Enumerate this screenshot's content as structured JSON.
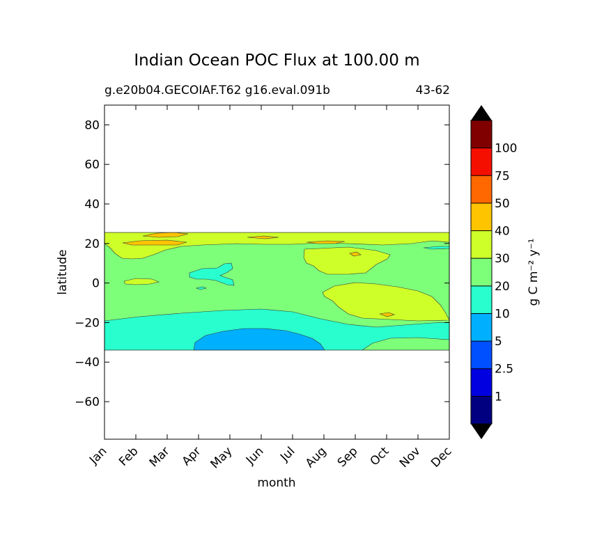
{
  "chart_data": {
    "type": "contour",
    "title": "Indian Ocean POC Flux at 100.00 m",
    "subtitle_left": "g.e20b04.GECOIAF.T62 g16.eval.091b",
    "subtitle_right": "43-62",
    "xlabel": "month",
    "ylabel": "latitude",
    "x_categories": [
      "Jan",
      "Feb",
      "Mar",
      "Apr",
      "May",
      "Jun",
      "Jul",
      "Aug",
      "Sep",
      "Oct",
      "Nov",
      "Dec"
    ],
    "ylim": [
      -79,
      90
    ],
    "y_ticks": [
      80,
      60,
      40,
      20,
      0,
      -20,
      -40,
      -60
    ],
    "y_tick_labels": [
      "80",
      "60",
      "40",
      "20",
      "0",
      "−20",
      "−40",
      "−60"
    ],
    "data_lat_range": [
      -34,
      25
    ],
    "colorbar": {
      "label": "g C m⁻² y⁻¹",
      "levels": [
        0,
        1,
        2.5,
        5,
        10,
        20,
        30,
        40,
        50,
        75,
        100
      ],
      "level_labels": [
        "1",
        "2.5",
        "5",
        "10",
        "20",
        "30",
        "40",
        "50",
        "75",
        "100"
      ],
      "colors": [
        "#000080",
        "#0000e0",
        "#0050ff",
        "#00b0ff",
        "#29ffce",
        "#7dff7a",
        "#ceff29",
        "#ffc400",
        "#ff6800",
        "#f50f00",
        "#800000"
      ],
      "under_color": "#000000",
      "over_color": "#000000"
    },
    "regions": [
      {
        "name": "band-5-10",
        "level": "5-10",
        "color": "#00b0ff"
      },
      {
        "name": "band-10-20",
        "level": "10-20",
        "color": "#29ffce"
      },
      {
        "name": "band-20-30",
        "level": "20-30",
        "color": "#7dff7a"
      },
      {
        "name": "band-30-40",
        "level": "30-40",
        "color": "#ceff29"
      },
      {
        "name": "band-40-50",
        "level": "40-50",
        "color": "#ffc400"
      }
    ]
  }
}
